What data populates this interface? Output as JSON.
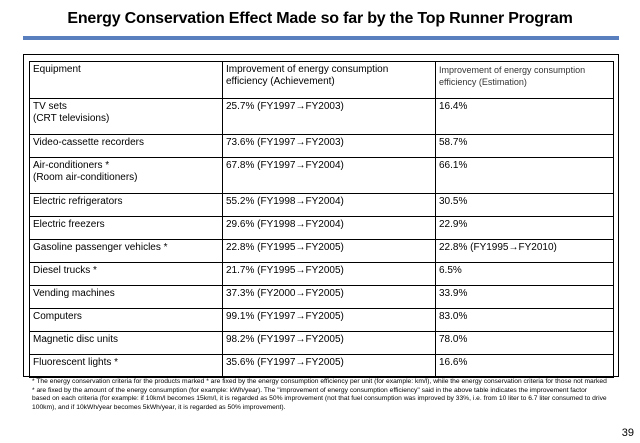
{
  "title": "Energy Conservation Effect Made so far by the Top Runner Program",
  "table": {
    "headers": [
      "Equipment",
      "Improvement of energy consumption efficiency (Achievement)",
      "Improvement of energy consumption efficiency (Estimation)"
    ],
    "rows": [
      {
        "equipment": "TV sets\n(CRT televisions)",
        "achievement": "25.7% (FY1997→FY2003)",
        "estimation": "16.4%"
      },
      {
        "equipment": "Video-cassette recorders",
        "achievement": "73.6% (FY1997→FY2003)",
        "estimation": "58.7%"
      },
      {
        "equipment": "Air-conditioners *\n(Room air-conditioners)",
        "achievement": "67.8% (FY1997→FY2004)",
        "estimation": "66.1%"
      },
      {
        "equipment": "Electric refrigerators",
        "achievement": "55.2% (FY1998→FY2004)",
        "estimation": "30.5%"
      },
      {
        "equipment": "Electric freezers",
        "achievement": "29.6% (FY1998→FY2004)",
        "estimation": "22.9%"
      },
      {
        "equipment": "Gasoline passenger vehicles *",
        "achievement": "22.8% (FY1995→FY2005)",
        "estimation": "22.8% (FY1995→FY2010)"
      },
      {
        "equipment": "Diesel trucks *",
        "achievement": "21.7% (FY1995→FY2005)",
        "estimation": "6.5%"
      },
      {
        "equipment": "Vending machines",
        "achievement": "37.3% (FY2000→FY2005)",
        "estimation": "33.9%"
      },
      {
        "equipment": "Computers",
        "achievement": "99.1% (FY1997→FY2005)",
        "estimation": "83.0%"
      },
      {
        "equipment": "Magnetic disc units",
        "achievement": "98.2% (FY1997→FY2005)",
        "estimation": "78.0%"
      },
      {
        "equipment": "Fluorescent lights *",
        "achievement": "35.6% (FY1997→FY2005)",
        "estimation": "16.6%"
      }
    ]
  },
  "footnote": "* The energy conservation criteria for the products marked * are fixed by the energy consumption efficiency per unit (for example: km/l), while the energy conservation criteria for those not marked * are fixed by the amount of the energy consumption (for example: kWh/year). The \"improvement of energy consumption efficiency\" said in the above table indicates the improvement factor based on each criteria (for example: if 10km/l becomes 15km/l, it is regarded as 50% improvement (not that fuel consumption was improved by 33%, i.e. from 10 liter to 6.7 liter consumed to drive 100km), and if 10kWh/year becomes 5kWh/year, it is regarded as 50% improvement).",
  "page_number": "39",
  "colors": {
    "title_rule": "#5a7fbf"
  }
}
